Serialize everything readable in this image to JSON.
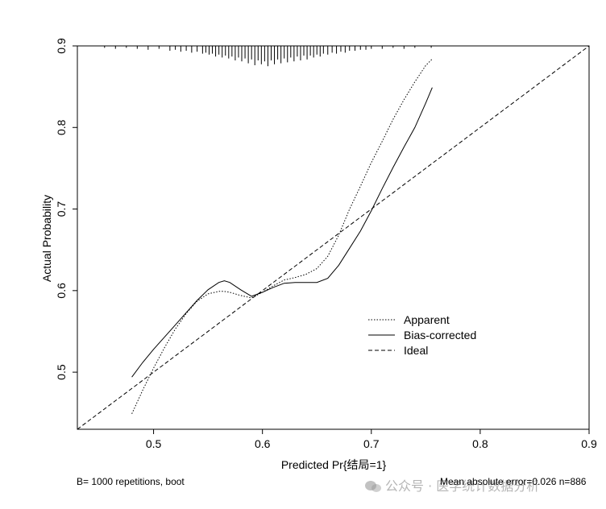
{
  "chart_data": {
    "type": "line",
    "title": "",
    "xlabel": "Predicted Pr{结局=1}",
    "ylabel": "Actual Probability",
    "xlim": [
      0.43,
      0.9
    ],
    "ylim": [
      0.43,
      0.9
    ],
    "xticks": [
      "0.5",
      "0.6",
      "0.7",
      "0.8",
      "0.9"
    ],
    "yticks": [
      "0.5",
      "0.6",
      "0.7",
      "0.8",
      "0.9"
    ],
    "grid": false,
    "legend_position": "lower-right",
    "series": [
      {
        "name": "Apparent",
        "line_style": "dotted",
        "x": [
          0.48,
          0.49,
          0.5,
          0.51,
          0.52,
          0.53,
          0.54,
          0.55,
          0.56,
          0.565,
          0.57,
          0.58,
          0.59,
          0.6,
          0.61,
          0.62,
          0.63,
          0.64,
          0.65,
          0.66,
          0.67,
          0.68,
          0.69,
          0.7,
          0.71,
          0.72,
          0.73,
          0.74,
          0.75,
          0.756
        ],
        "y": [
          0.449,
          0.478,
          0.505,
          0.53,
          0.553,
          0.572,
          0.587,
          0.596,
          0.599,
          0.599,
          0.598,
          0.594,
          0.591,
          0.598,
          0.606,
          0.613,
          0.616,
          0.62,
          0.627,
          0.642,
          0.668,
          0.7,
          0.728,
          0.757,
          0.783,
          0.81,
          0.834,
          0.856,
          0.876,
          0.884
        ]
      },
      {
        "name": "Bias-corrected",
        "line_style": "solid",
        "x": [
          0.48,
          0.49,
          0.5,
          0.51,
          0.52,
          0.53,
          0.54,
          0.55,
          0.56,
          0.565,
          0.57,
          0.58,
          0.59,
          0.6,
          0.61,
          0.62,
          0.63,
          0.64,
          0.65,
          0.66,
          0.67,
          0.68,
          0.69,
          0.7,
          0.71,
          0.72,
          0.73,
          0.74,
          0.75,
          0.756
        ],
        "y": [
          0.494,
          0.512,
          0.528,
          0.543,
          0.558,
          0.573,
          0.588,
          0.601,
          0.61,
          0.612,
          0.61,
          0.601,
          0.593,
          0.598,
          0.604,
          0.609,
          0.61,
          0.61,
          0.61,
          0.615,
          0.631,
          0.652,
          0.673,
          0.698,
          0.725,
          0.751,
          0.776,
          0.8,
          0.83,
          0.849
        ]
      },
      {
        "name": "Ideal",
        "line_style": "dashed",
        "x": [
          0.43,
          0.9
        ],
        "y": [
          0.43,
          0.9
        ]
      }
    ],
    "rug": {
      "x": [
        0.455,
        0.465,
        0.475,
        0.485,
        0.495,
        0.505,
        0.515,
        0.52,
        0.525,
        0.53,
        0.535,
        0.54,
        0.545,
        0.548,
        0.551,
        0.554,
        0.557,
        0.56,
        0.563,
        0.566,
        0.569,
        0.572,
        0.575,
        0.578,
        0.581,
        0.584,
        0.587,
        0.59,
        0.593,
        0.596,
        0.599,
        0.602,
        0.605,
        0.608,
        0.611,
        0.614,
        0.617,
        0.62,
        0.623,
        0.626,
        0.629,
        0.632,
        0.635,
        0.638,
        0.641,
        0.644,
        0.647,
        0.65,
        0.653,
        0.656,
        0.66,
        0.664,
        0.668,
        0.672,
        0.676,
        0.68,
        0.685,
        0.69,
        0.695,
        0.7,
        0.71,
        0.72,
        0.73,
        0.74,
        0.755
      ],
      "h": [
        0.02,
        0.03,
        0.02,
        0.03,
        0.04,
        0.03,
        0.05,
        0.04,
        0.06,
        0.05,
        0.07,
        0.06,
        0.08,
        0.07,
        0.09,
        0.08,
        0.11,
        0.09,
        0.12,
        0.1,
        0.13,
        0.11,
        0.15,
        0.12,
        0.16,
        0.13,
        0.18,
        0.14,
        0.2,
        0.15,
        0.19,
        0.16,
        0.21,
        0.15,
        0.19,
        0.14,
        0.18,
        0.13,
        0.17,
        0.12,
        0.16,
        0.11,
        0.15,
        0.1,
        0.14,
        0.1,
        0.12,
        0.09,
        0.11,
        0.08,
        0.09,
        0.07,
        0.08,
        0.06,
        0.07,
        0.05,
        0.05,
        0.04,
        0.04,
        0.03,
        0.03,
        0.02,
        0.03,
        0.02,
        0.02
      ]
    }
  },
  "footer": {
    "left_text": "B= 1000 repetitions, boot",
    "right_text": "Mean absolute error=0.026 n=886"
  },
  "watermark": {
    "text": "公众号 · 医学统计数据分析"
  }
}
